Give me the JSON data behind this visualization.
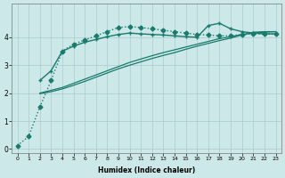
{
  "xlabel": "Humidex (Indice chaleur)",
  "background_color": "#cce8e8",
  "grid_color": "#aacccc",
  "line_color": "#1a7a6e",
  "xlim": [
    -0.5,
    23.5
  ],
  "ylim": [
    -0.15,
    5.2
  ],
  "yticks": [
    0,
    1,
    2,
    3,
    4
  ],
  "xticks": [
    0,
    1,
    2,
    3,
    4,
    5,
    6,
    7,
    8,
    9,
    10,
    11,
    12,
    13,
    14,
    15,
    16,
    17,
    18,
    19,
    20,
    21,
    22,
    23
  ],
  "series": [
    {
      "x": [
        0,
        1,
        2,
        3,
        4,
        5,
        6,
        7,
        8,
        9,
        10,
        11,
        12,
        13,
        14,
        15,
        16,
        17,
        18,
        19,
        20,
        21,
        22,
        23
      ],
      "y": [
        0.12,
        0.45,
        1.5,
        2.45,
        3.5,
        3.75,
        3.9,
        4.05,
        4.2,
        4.35,
        4.38,
        4.35,
        4.3,
        4.25,
        4.2,
        4.15,
        4.1,
        4.08,
        4.05,
        4.05,
        4.1,
        4.12,
        4.12,
        4.12
      ],
      "marker": "D",
      "markersize": 2.5,
      "linestyle": "dotted",
      "linewidth": 1.0
    },
    {
      "x": [
        2,
        3,
        4,
        5,
        6,
        7,
        8,
        9,
        10,
        11,
        12,
        13,
        14,
        15,
        16,
        17,
        18,
        19,
        20,
        21,
        22,
        23
      ],
      "y": [
        2.45,
        2.8,
        3.5,
        3.68,
        3.82,
        3.92,
        4.02,
        4.1,
        4.15,
        4.12,
        4.1,
        4.08,
        4.05,
        4.02,
        4.0,
        4.42,
        4.5,
        4.3,
        4.2,
        4.15,
        4.12,
        4.12
      ],
      "marker": "+",
      "markersize": 3.5,
      "linestyle": "solid",
      "linewidth": 1.0
    },
    {
      "x": [
        2,
        3,
        4,
        5,
        6,
        7,
        8,
        9,
        10,
        11,
        12,
        13,
        14,
        15,
        16,
        17,
        18,
        19,
        20,
        21,
        22,
        23
      ],
      "y": [
        2.0,
        2.1,
        2.2,
        2.35,
        2.5,
        2.65,
        2.8,
        2.95,
        3.1,
        3.22,
        3.34,
        3.45,
        3.55,
        3.65,
        3.75,
        3.85,
        3.95,
        4.02,
        4.1,
        4.15,
        4.18,
        4.2
      ],
      "marker": null,
      "markersize": 0,
      "linestyle": "solid",
      "linewidth": 0.9
    },
    {
      "x": [
        2,
        3,
        4,
        5,
        6,
        7,
        8,
        9,
        10,
        11,
        12,
        13,
        14,
        15,
        16,
        17,
        18,
        19,
        20,
        21,
        22,
        23
      ],
      "y": [
        1.98,
        2.05,
        2.15,
        2.28,
        2.42,
        2.57,
        2.72,
        2.87,
        3.0,
        3.12,
        3.24,
        3.35,
        3.45,
        3.57,
        3.68,
        3.78,
        3.88,
        3.97,
        4.08,
        4.18,
        4.2,
        4.2
      ],
      "marker": null,
      "markersize": 0,
      "linestyle": "solid",
      "linewidth": 0.9
    }
  ]
}
